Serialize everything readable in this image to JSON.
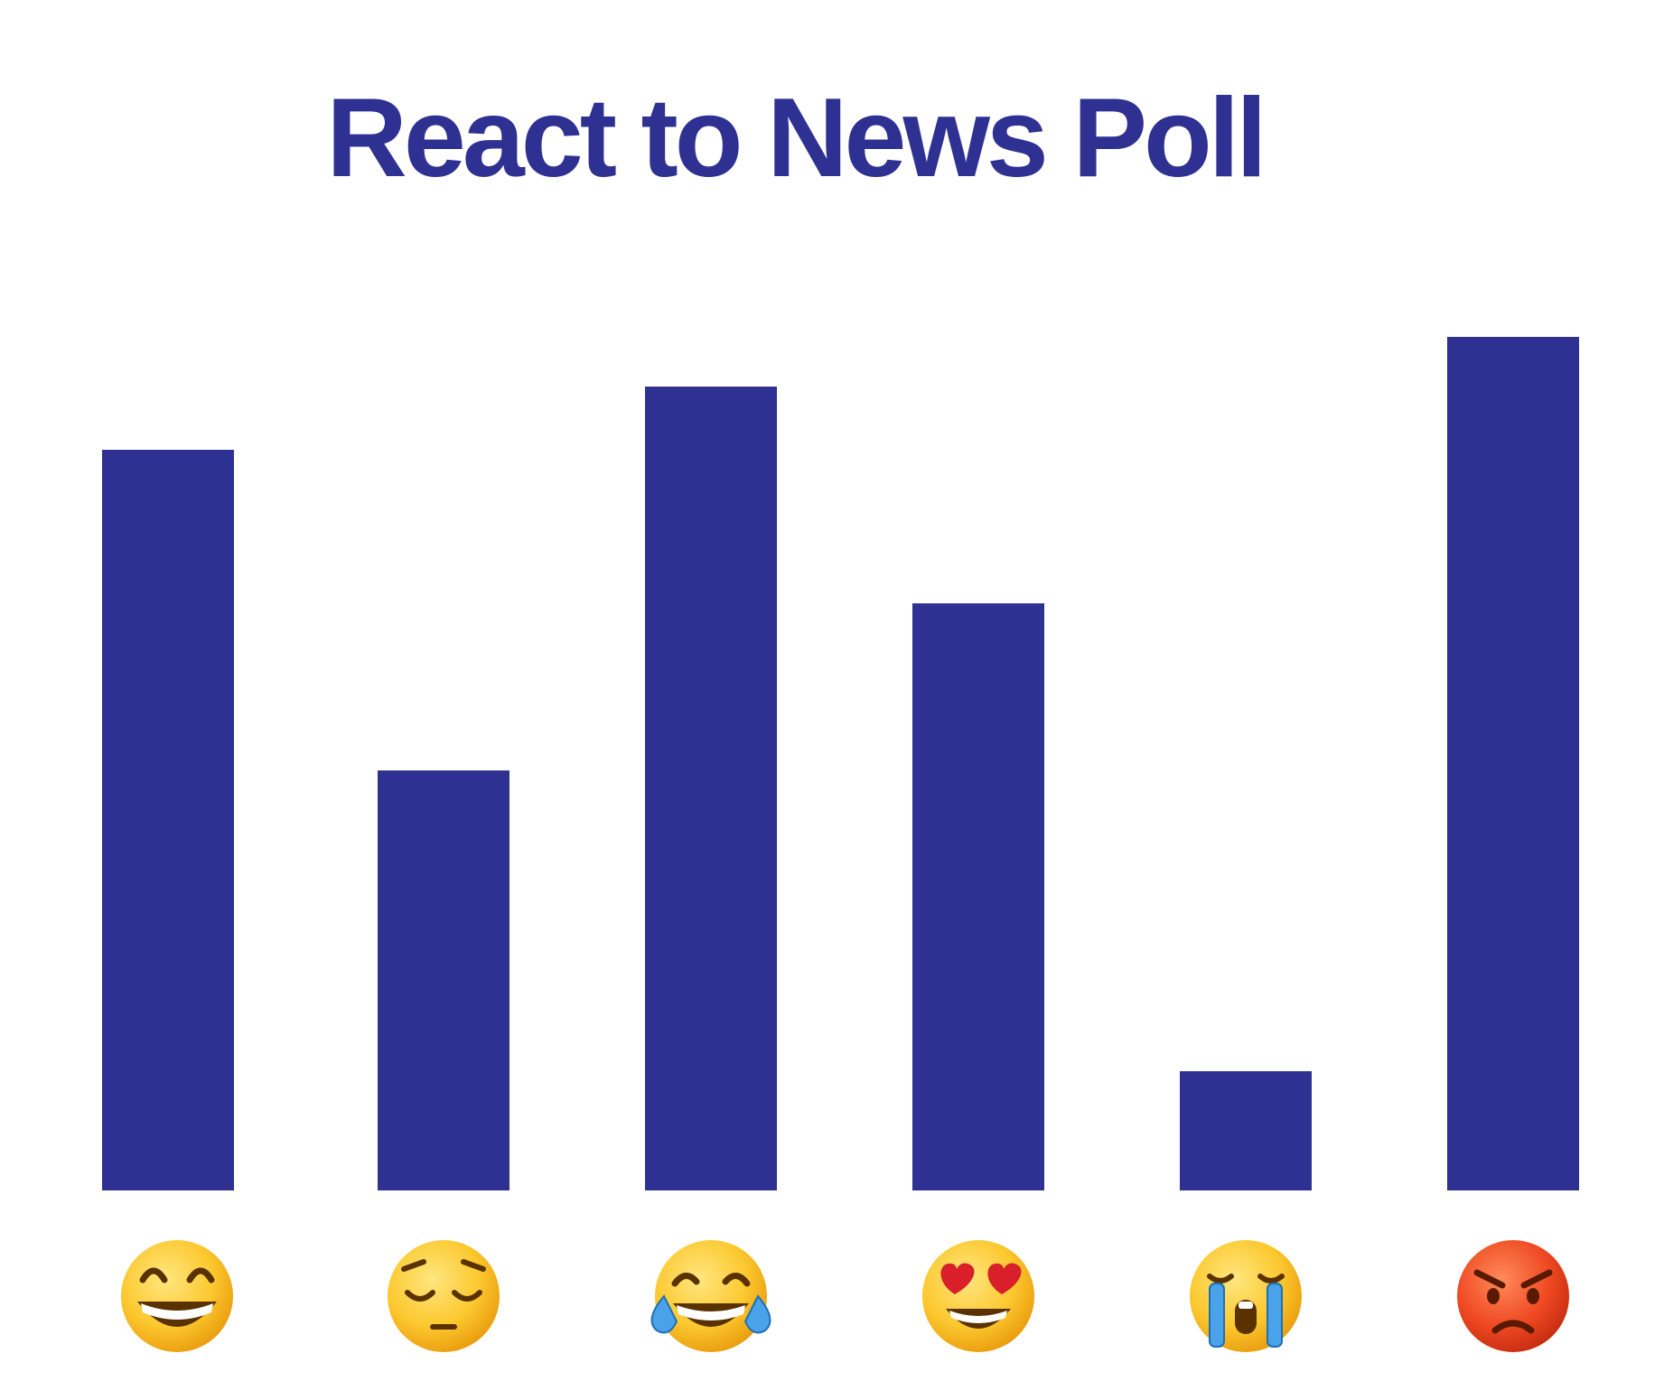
{
  "colors": {
    "bar": "#2e3192",
    "title": "#2e3192",
    "background": "#ffffff",
    "emoji_face": "#fbc02d",
    "emoji_angry": "#e53e1c"
  },
  "chart_data": {
    "type": "bar",
    "title": "React to News Poll",
    "xlabel": "",
    "ylabel": "",
    "grid": false,
    "legend": "none",
    "categories": [
      "grinning-face",
      "pensive-face",
      "tears-of-joy-face",
      "heart-eyes-face",
      "loudly-crying-face",
      "angry-face"
    ],
    "category_icons": [
      "grinning-face-icon",
      "pensive-face-icon",
      "tears-of-joy-face-icon",
      "heart-eyes-face-icon",
      "loudly-crying-face-icon",
      "angry-face-icon"
    ],
    "values": [
      82,
      46.5,
      89,
      65,
      13.2,
      94.5
    ],
    "ylim": [
      0,
      100
    ]
  }
}
